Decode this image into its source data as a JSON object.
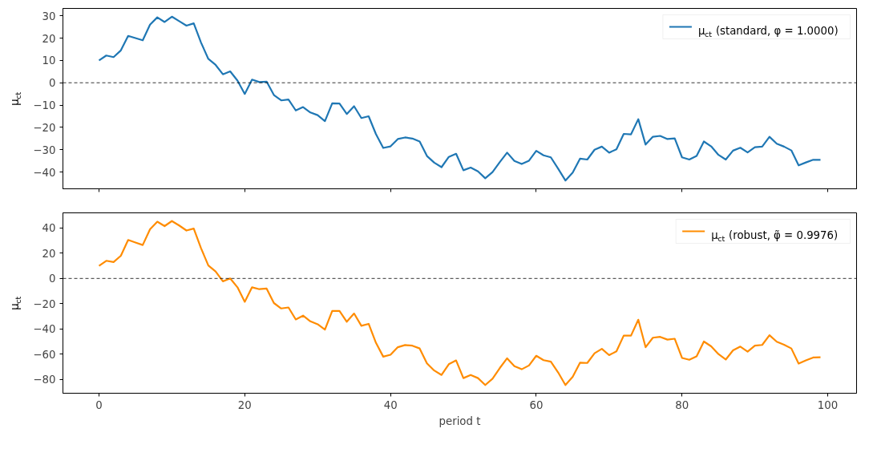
{
  "chart_data": [
    {
      "type": "line",
      "ylabel": "μ$_{ct}$",
      "x": [
        0,
        1,
        2,
        3,
        4,
        5,
        6,
        7,
        8,
        9,
        10,
        11,
        12,
        13,
        14,
        15,
        16,
        17,
        18,
        19,
        20,
        21,
        22,
        23,
        24,
        25,
        26,
        27,
        28,
        29,
        30,
        31,
        32,
        33,
        34,
        35,
        36,
        37,
        38,
        39,
        40,
        41,
        42,
        43,
        44,
        45,
        46,
        47,
        48,
        49,
        50,
        51,
        52,
        53,
        54,
        55,
        56,
        57,
        58,
        59,
        60,
        61,
        62,
        63,
        64,
        65,
        66,
        67,
        68,
        69,
        70,
        71,
        72,
        73,
        74,
        75,
        76,
        77,
        78,
        79,
        80,
        81,
        82,
        83,
        84,
        85,
        86,
        87,
        88,
        89,
        90,
        91,
        92,
        93,
        94,
        95,
        96,
        97,
        98,
        99
      ],
      "series": [
        {
          "name": "μ$_{ct}$ (standard, φ = 1.0000)",
          "color": "#1f77b4",
          "values": [
            10,
            12.2,
            11.5,
            14.5,
            21,
            20,
            19,
            26,
            29.3,
            27.2,
            29.6,
            27.6,
            25.6,
            26.6,
            18,
            10.7,
            8,
            3.8,
            5.1,
            1,
            -5,
            1.4,
            0.3,
            0.5,
            -5.5,
            -7.9,
            -7.5,
            -12.4,
            -10.9,
            -13.3,
            -14.5,
            -17.2,
            -9.2,
            -9.3,
            -14,
            -10.5,
            -15.8,
            -15,
            -23,
            -29.2,
            -28.5,
            -25.2,
            -24.5,
            -25,
            -26.3,
            -32.8,
            -35.8,
            -37.8,
            -33.2,
            -31.8,
            -39.2,
            -38,
            -39.7,
            -42.8,
            -40,
            -35.5,
            -31.3,
            -35,
            -36.4,
            -34.9,
            -30.5,
            -32.5,
            -33.4,
            -38.5,
            -43.8,
            -40.2,
            -34,
            -34.4,
            -30,
            -28.6,
            -31.3,
            -29.8,
            -22.9,
            -23.1,
            -16.3,
            -27.7,
            -24.2,
            -23.8,
            -25.2,
            -24.9,
            -33.4,
            -34.4,
            -32.8,
            -26.3,
            -28.5,
            -32.3,
            -34.4,
            -30.4,
            -29.1,
            -31.2,
            -28.9,
            -28.6,
            -24.2,
            -27.3,
            -28.6,
            -30.3,
            -37,
            -35.7,
            -34.5,
            -34.5
          ]
        }
      ],
      "xlim": [
        -4.95,
        103.95
      ],
      "xticks": [
        0,
        20,
        40,
        60,
        80,
        100
      ],
      "ylim": [
        -47.5,
        33.3
      ],
      "yticks": [
        -40,
        -30,
        -20,
        -10,
        0,
        10,
        20,
        30
      ],
      "ref_lines": [
        {
          "axis": "y",
          "value": 0,
          "color": "#000000",
          "line_style": "dashed"
        }
      ],
      "grid": false,
      "legend": "top right",
      "tick_labels": "y"
    },
    {
      "type": "line",
      "xlabel": "period t",
      "ylabel": "μ$_{ct}$",
      "x": [
        0,
        1,
        2,
        3,
        4,
        5,
        6,
        7,
        8,
        9,
        10,
        11,
        12,
        13,
        14,
        15,
        16,
        17,
        18,
        19,
        20,
        21,
        22,
        23,
        24,
        25,
        26,
        27,
        28,
        29,
        30,
        31,
        32,
        33,
        34,
        35,
        36,
        37,
        38,
        39,
        40,
        41,
        42,
        43,
        44,
        45,
        46,
        47,
        48,
        49,
        50,
        51,
        52,
        53,
        54,
        55,
        56,
        57,
        58,
        59,
        60,
        61,
        62,
        63,
        64,
        65,
        66,
        67,
        68,
        69,
        70,
        71,
        72,
        73,
        74,
        75,
        76,
        77,
        78,
        79,
        80,
        81,
        82,
        83,
        84,
        85,
        86,
        87,
        88,
        89,
        90,
        91,
        92,
        93,
        94,
        95,
        96,
        97,
        98,
        99
      ],
      "series": [
        {
          "name": "μ$_{ct}$ (robust, φ̃ = 0.9976)",
          "color": "#ff8c00",
          "values": [
            10,
            14,
            13,
            18,
            30.5,
            28.5,
            26.5,
            39,
            45,
            41.5,
            45.5,
            42,
            38,
            39.5,
            24,
            10.3,
            5.5,
            -2.3,
            0,
            -7,
            -18.5,
            -7,
            -8.5,
            -8,
            -19.5,
            -23.8,
            -23,
            -32.5,
            -29.5,
            -34,
            -36.3,
            -40.5,
            -25.8,
            -25.8,
            -34.3,
            -27.8,
            -37.5,
            -36,
            -51,
            -62,
            -60.5,
            -54.5,
            -52.8,
            -53.3,
            -55.5,
            -67.3,
            -73,
            -76.5,
            -68,
            -65,
            -79,
            -76.5,
            -79,
            -84.5,
            -79.5,
            -71,
            -63.3,
            -69.5,
            -72,
            -69,
            -61.3,
            -64.8,
            -66,
            -74.5,
            -84.5,
            -78,
            -66.8,
            -67,
            -59.3,
            -55.8,
            -60.8,
            -57.8,
            -45.3,
            -45.3,
            -32.7,
            -54.5,
            -47,
            -46.3,
            -48.5,
            -47.8,
            -63,
            -64.5,
            -61.8,
            -50,
            -53.8,
            -60,
            -64.3,
            -57,
            -54,
            -58,
            -53.3,
            -52.7,
            -45,
            -50.2,
            -52.5,
            -55.5,
            -67.5,
            -65,
            -62.7,
            -62.5
          ]
        }
      ],
      "xlim": [
        -4.95,
        103.95
      ],
      "xticks": [
        0,
        20,
        40,
        60,
        80,
        100
      ],
      "ylim": [
        -91,
        52
      ],
      "yticks": [
        -80,
        -60,
        -40,
        -20,
        0,
        20,
        40
      ],
      "ref_lines": [
        {
          "axis": "y",
          "value": 0,
          "color": "#000000",
          "line_style": "dashed"
        }
      ],
      "grid": false,
      "legend": "top right"
    }
  ]
}
